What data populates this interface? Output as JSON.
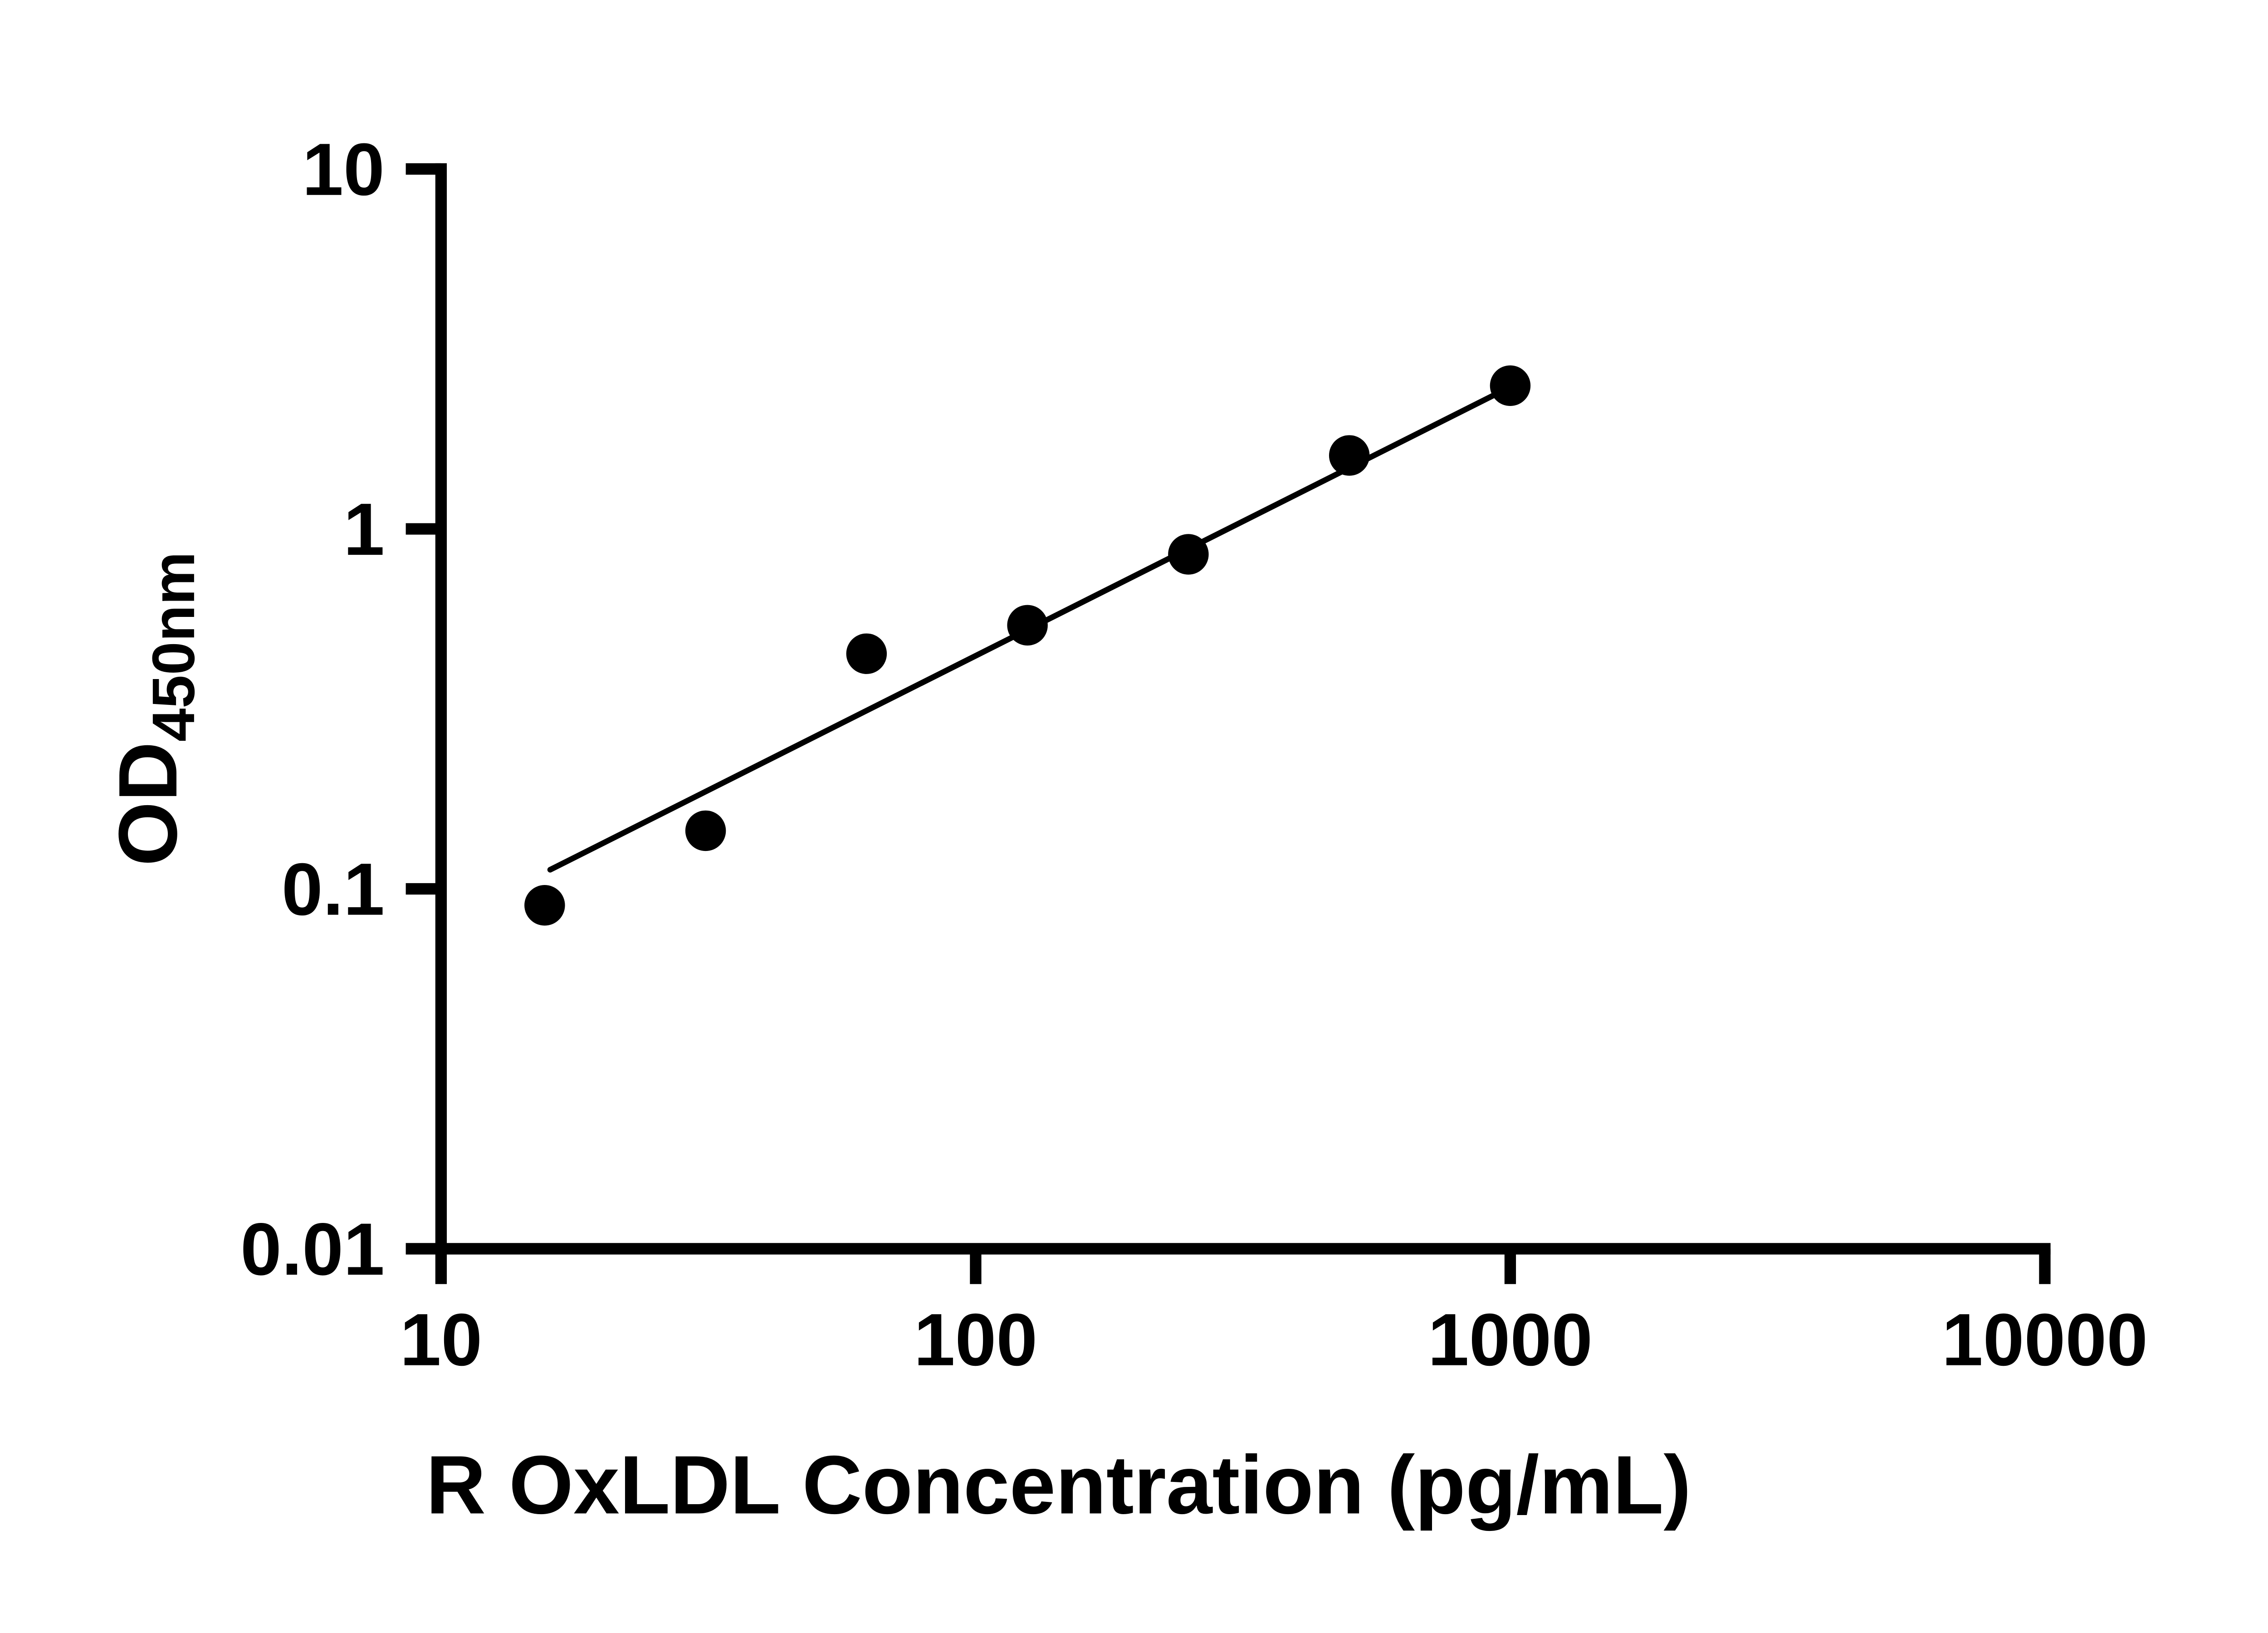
{
  "page": {
    "background_color": "#ffffff"
  },
  "chart_data": {
    "type": "scatter",
    "title": "",
    "xlabel": "R OxLDL Concentration (pg/mL)",
    "ylabel_main": "OD",
    "ylabel_sub": "450nm",
    "x_scale": "log",
    "y_scale": "log",
    "xlim": [
      10,
      10000
    ],
    "ylim": [
      0.01,
      10
    ],
    "x_ticks": [
      10,
      100,
      1000,
      10000
    ],
    "x_tick_labels": [
      "10",
      "100",
      "1000",
      "10000"
    ],
    "y_ticks": [
      0.01,
      0.1,
      1,
      10
    ],
    "y_tick_labels": [
      "0.01",
      "0.1",
      "1",
      "10"
    ],
    "points": [
      {
        "x": 15.625,
        "y": 0.09
      },
      {
        "x": 31.25,
        "y": 0.145
      },
      {
        "x": 62.5,
        "y": 0.45
      },
      {
        "x": 125,
        "y": 0.54
      },
      {
        "x": 250,
        "y": 0.85
      },
      {
        "x": 500,
        "y": 1.6
      },
      {
        "x": 1000,
        "y": 2.5
      }
    ],
    "trendline": {
      "x1": 16,
      "y1": 0.113,
      "x2": 1000,
      "y2": 2.48
    },
    "marker_color": "#000000",
    "trendline_color": "#000000",
    "axis_color": "#000000",
    "grid": false,
    "legend": false
  }
}
